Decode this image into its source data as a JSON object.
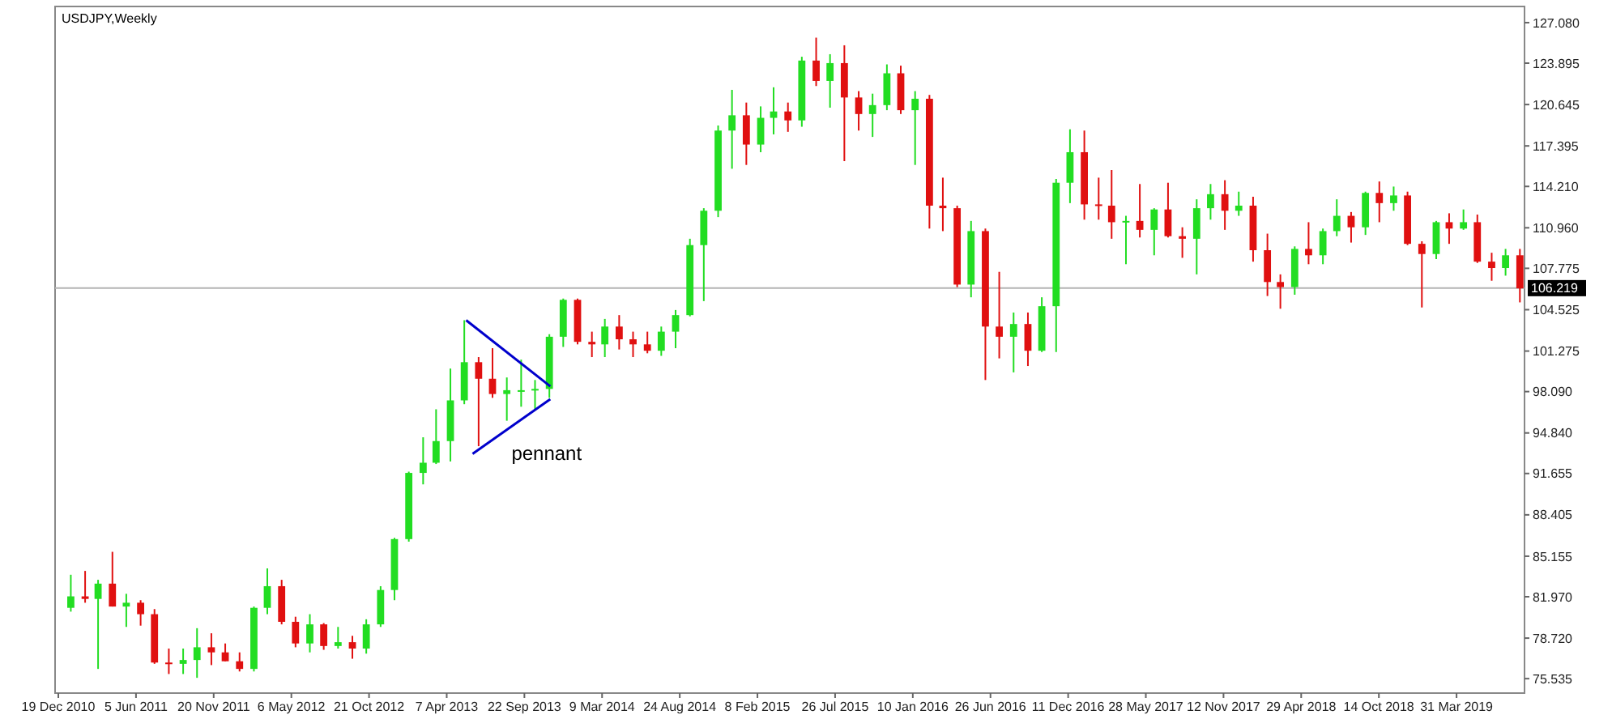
{
  "chart_data": {
    "type": "candlestick",
    "title": "USDJPY,Weekly",
    "x": [
      "2011-01-15",
      "2011-02-15",
      "2011-03-15",
      "2011-04-15",
      "2011-05-15",
      "2011-06-15",
      "2011-07-15",
      "2011-08-15",
      "2011-09-15",
      "2011-10-15",
      "2011-11-15",
      "2011-12-15",
      "2012-01-15",
      "2012-02-15",
      "2012-03-15",
      "2012-04-15",
      "2012-05-15",
      "2012-06-15",
      "2012-07-15",
      "2012-08-15",
      "2012-09-15",
      "2012-10-15",
      "2012-11-15",
      "2012-12-15",
      "2013-01-15",
      "2013-02-15",
      "2013-03-15",
      "2013-04-15",
      "2013-05-15",
      "2013-06-15",
      "2013-07-15",
      "2013-08-15",
      "2013-09-15",
      "2013-10-15",
      "2013-11-15",
      "2013-12-15",
      "2014-01-15",
      "2014-02-15",
      "2014-03-15",
      "2014-04-15",
      "2014-05-15",
      "2014-06-15",
      "2014-07-15",
      "2014-08-15",
      "2014-09-15",
      "2014-10-15",
      "2014-11-15",
      "2014-12-15",
      "2015-01-15",
      "2015-02-15",
      "2015-03-15",
      "2015-04-15",
      "2015-05-15",
      "2015-06-15",
      "2015-07-15",
      "2015-08-15",
      "2015-09-15",
      "2015-10-15",
      "2015-11-15",
      "2015-12-15",
      "2016-01-15",
      "2016-02-15",
      "2016-03-15",
      "2016-04-15",
      "2016-05-15",
      "2016-06-15",
      "2016-07-15",
      "2016-08-15",
      "2016-09-15",
      "2016-10-15",
      "2016-11-15",
      "2016-12-15",
      "2017-01-15",
      "2017-02-15",
      "2017-03-15",
      "2017-04-15",
      "2017-05-15",
      "2017-06-15",
      "2017-07-15",
      "2017-08-15",
      "2017-09-15",
      "2017-10-15",
      "2017-11-15",
      "2017-12-15",
      "2018-01-15",
      "2018-02-15",
      "2018-03-15",
      "2018-04-15",
      "2018-05-15",
      "2018-06-15",
      "2018-07-15",
      "2018-08-15",
      "2018-09-15",
      "2018-10-15",
      "2018-11-15",
      "2018-12-15",
      "2019-01-15",
      "2019-02-15",
      "2019-03-15",
      "2019-04-15",
      "2019-05-15",
      "2019-06-15",
      "2019-07-15",
      "2019-08-15"
    ],
    "ohlc": [
      [
        81.1,
        83.7,
        80.8,
        82.0
      ],
      [
        82.0,
        84.0,
        81.5,
        81.8
      ],
      [
        81.8,
        83.3,
        76.3,
        83.0
      ],
      [
        83.0,
        85.5,
        81.2,
        81.2
      ],
      [
        81.2,
        82.2,
        79.6,
        81.5
      ],
      [
        81.5,
        81.7,
        79.7,
        80.6
      ],
      [
        80.6,
        81.0,
        76.7,
        76.8
      ],
      [
        76.8,
        77.9,
        75.9,
        76.7
      ],
      [
        76.7,
        77.9,
        75.9,
        77.0
      ],
      [
        77.0,
        79.5,
        75.6,
        78.0
      ],
      [
        78.0,
        79.1,
        76.6,
        77.6
      ],
      [
        77.6,
        78.3,
        76.9,
        76.9
      ],
      [
        76.9,
        77.6,
        76.1,
        76.3
      ],
      [
        76.3,
        81.2,
        76.1,
        81.1
      ],
      [
        81.1,
        84.2,
        80.6,
        82.8
      ],
      [
        82.8,
        83.3,
        79.8,
        80.0
      ],
      [
        80.0,
        80.4,
        78.0,
        78.3
      ],
      [
        78.3,
        80.6,
        77.6,
        79.8
      ],
      [
        79.8,
        79.9,
        77.8,
        78.1
      ],
      [
        78.1,
        79.6,
        77.9,
        78.4
      ],
      [
        78.4,
        78.9,
        77.1,
        77.9
      ],
      [
        77.9,
        80.2,
        77.5,
        79.8
      ],
      [
        79.8,
        82.8,
        79.6,
        82.5
      ],
      [
        82.5,
        86.6,
        81.7,
        86.5
      ],
      [
        86.5,
        91.8,
        86.3,
        91.7
      ],
      [
        91.7,
        94.5,
        90.8,
        92.5
      ],
      [
        92.5,
        96.7,
        92.4,
        94.2
      ],
      [
        94.2,
        99.9,
        92.6,
        97.4
      ],
      [
        97.4,
        103.7,
        97.1,
        100.4
      ],
      [
        100.4,
        100.8,
        93.8,
        99.1
      ],
      [
        99.1,
        101.5,
        97.6,
        97.9
      ],
      [
        97.9,
        99.2,
        95.8,
        98.2
      ],
      [
        98.2,
        100.6,
        96.9,
        98.2
      ],
      [
        98.2,
        99.0,
        96.6,
        98.3
      ],
      [
        98.3,
        102.6,
        97.6,
        102.4
      ],
      [
        102.4,
        105.4,
        101.6,
        105.3
      ],
      [
        105.3,
        105.4,
        101.8,
        102.0
      ],
      [
        102.0,
        102.8,
        100.8,
        101.8
      ],
      [
        101.8,
        103.8,
        100.8,
        103.2
      ],
      [
        103.2,
        104.1,
        101.4,
        102.2
      ],
      [
        102.2,
        102.8,
        100.8,
        101.8
      ],
      [
        101.8,
        102.8,
        101.1,
        101.3
      ],
      [
        101.3,
        103.2,
        100.9,
        102.8
      ],
      [
        102.8,
        104.5,
        101.5,
        104.1
      ],
      [
        104.1,
        110.1,
        104.0,
        109.6
      ],
      [
        109.6,
        112.5,
        105.2,
        112.3
      ],
      [
        112.3,
        119.0,
        111.8,
        118.6
      ],
      [
        118.6,
        121.8,
        115.6,
        119.8
      ],
      [
        119.8,
        120.8,
        115.9,
        117.5
      ],
      [
        117.5,
        120.5,
        116.9,
        119.6
      ],
      [
        119.6,
        122.0,
        118.3,
        120.1
      ],
      [
        120.1,
        120.8,
        118.5,
        119.4
      ],
      [
        119.4,
        124.4,
        118.9,
        124.1
      ],
      [
        124.1,
        125.9,
        122.1,
        122.5
      ],
      [
        122.5,
        124.6,
        120.4,
        123.9
      ],
      [
        123.9,
        125.3,
        116.2,
        121.2
      ],
      [
        121.2,
        121.7,
        118.6,
        119.9
      ],
      [
        119.9,
        121.5,
        118.1,
        120.6
      ],
      [
        120.6,
        123.8,
        120.2,
        123.1
      ],
      [
        123.1,
        123.7,
        119.9,
        120.2
      ],
      [
        120.2,
        121.7,
        115.9,
        121.1
      ],
      [
        121.1,
        121.4,
        110.9,
        112.7
      ],
      [
        112.7,
        114.9,
        110.7,
        112.5
      ],
      [
        112.5,
        112.7,
        106.3,
        106.5
      ],
      [
        106.5,
        111.5,
        105.5,
        110.7
      ],
      [
        110.7,
        110.9,
        99.0,
        103.2
      ],
      [
        103.2,
        107.5,
        100.7,
        102.4
      ],
      [
        102.4,
        104.3,
        99.6,
        103.4
      ],
      [
        103.4,
        104.3,
        100.1,
        101.3
      ],
      [
        101.3,
        105.5,
        101.2,
        104.8
      ],
      [
        104.8,
        114.8,
        101.2,
        114.5
      ],
      [
        114.5,
        118.7,
        112.9,
        116.9
      ],
      [
        116.9,
        118.6,
        111.6,
        112.8
      ],
      [
        112.8,
        114.9,
        111.6,
        112.7
      ],
      [
        112.7,
        115.5,
        110.1,
        111.4
      ],
      [
        111.4,
        111.9,
        108.1,
        111.5
      ],
      [
        111.5,
        114.4,
        110.2,
        110.8
      ],
      [
        110.8,
        112.5,
        108.8,
        112.4
      ],
      [
        112.4,
        114.5,
        110.2,
        110.3
      ],
      [
        110.3,
        111.0,
        108.6,
        110.1
      ],
      [
        110.1,
        113.2,
        107.3,
        112.5
      ],
      [
        112.5,
        114.4,
        111.6,
        113.6
      ],
      [
        113.6,
        114.7,
        110.8,
        112.3
      ],
      [
        112.3,
        113.8,
        111.9,
        112.7
      ],
      [
        112.7,
        113.4,
        108.3,
        109.2
      ],
      [
        109.2,
        110.5,
        105.6,
        106.7
      ],
      [
        106.7,
        107.3,
        104.6,
        106.3
      ],
      [
        106.3,
        109.5,
        105.7,
        109.3
      ],
      [
        109.3,
        111.4,
        108.1,
        108.8
      ],
      [
        108.8,
        110.9,
        108.1,
        110.7
      ],
      [
        110.7,
        113.2,
        110.3,
        111.9
      ],
      [
        111.9,
        112.2,
        109.8,
        111.0
      ],
      [
        111.0,
        113.8,
        110.4,
        113.7
      ],
      [
        113.7,
        114.6,
        111.4,
        112.9
      ],
      [
        112.9,
        114.2,
        112.3,
        113.5
      ],
      [
        113.5,
        113.8,
        109.6,
        109.7
      ],
      [
        109.7,
        109.9,
        104.7,
        108.9
      ],
      [
        108.9,
        111.5,
        108.5,
        111.4
      ],
      [
        111.4,
        112.1,
        109.7,
        110.9
      ],
      [
        110.9,
        112.4,
        110.8,
        111.4
      ],
      [
        111.4,
        112.0,
        108.2,
        108.3
      ],
      [
        108.3,
        109.0,
        106.8,
        107.8
      ],
      [
        107.8,
        109.3,
        107.2,
        108.8
      ],
      [
        108.8,
        109.3,
        105.1,
        106.2
      ]
    ],
    "series": [
      {
        "type": "line",
        "color": "#0000cc",
        "x": [
          "2013-05-19",
          "2013-11-17"
        ],
        "values": [
          103.7,
          98.5
        ]
      },
      {
        "type": "line",
        "color": "#0000cc",
        "x": [
          "2013-06-02",
          "2013-11-17"
        ],
        "values": [
          93.2,
          97.5
        ]
      }
    ],
    "annotations": [
      "pennant"
    ],
    "ref_lines": [
      {
        "axis": "y",
        "value": 106.219,
        "label": "106.219",
        "color": "#b4b4b4"
      }
    ],
    "xlim": [
      "2010-12-12",
      "2019-08-25"
    ],
    "xticks": [
      {
        "value": "2010-12-19",
        "label": "19 Dec 2010"
      },
      {
        "value": "2011-06-05",
        "label": "5 Jun 2011"
      },
      {
        "value": "2011-11-20",
        "label": "20 Nov 2011"
      },
      {
        "value": "2012-05-06",
        "label": "6 May 2012"
      },
      {
        "value": "2012-10-21",
        "label": "21 Oct 2012"
      },
      {
        "value": "2013-04-07",
        "label": "7 Apr 2013"
      },
      {
        "value": "2013-09-22",
        "label": "22 Sep 2013"
      },
      {
        "value": "2014-03-09",
        "label": "9 Mar 2014"
      },
      {
        "value": "2014-08-24",
        "label": "24 Aug 2014"
      },
      {
        "value": "2015-02-08",
        "label": "8 Feb 2015"
      },
      {
        "value": "2015-07-26",
        "label": "26 Jul 2015"
      },
      {
        "value": "2016-01-10",
        "label": "10 Jan 2016"
      },
      {
        "value": "2016-06-26",
        "label": "26 Jun 2016"
      },
      {
        "value": "2016-12-11",
        "label": "11 Dec 2016"
      },
      {
        "value": "2017-05-28",
        "label": "28 May 2017"
      },
      {
        "value": "2017-11-12",
        "label": "12 Nov 2017"
      },
      {
        "value": "2018-04-29",
        "label": "29 Apr 2018"
      },
      {
        "value": "2018-10-14",
        "label": "14 Oct 2018"
      },
      {
        "value": "2019-03-31",
        "label": "31 Mar 2019"
      }
    ],
    "ylim": [
      74.4,
      128.35
    ],
    "yticks": [
      {
        "value": 75.535,
        "label": "75.535"
      },
      {
        "value": 78.72,
        "label": "78.720"
      },
      {
        "value": 81.97,
        "label": "81.970"
      },
      {
        "value": 85.155,
        "label": "85.155"
      },
      {
        "value": 88.405,
        "label": "88.405"
      },
      {
        "value": 91.655,
        "label": "91.655"
      },
      {
        "value": 94.84,
        "label": "94.840"
      },
      {
        "value": 98.09,
        "label": "98.090"
      },
      {
        "value": 101.275,
        "label": "101.275"
      },
      {
        "value": 104.525,
        "label": "104.525"
      },
      {
        "value": 107.775,
        "label": "107.775"
      },
      {
        "value": 110.96,
        "label": "110.960"
      },
      {
        "value": 114.21,
        "label": "114.210"
      },
      {
        "value": 117.395,
        "label": "117.395"
      },
      {
        "value": 120.645,
        "label": "120.645"
      },
      {
        "value": 123.895,
        "label": "123.895"
      },
      {
        "value": 127.08,
        "label": "127.080"
      }
    ]
  }
}
